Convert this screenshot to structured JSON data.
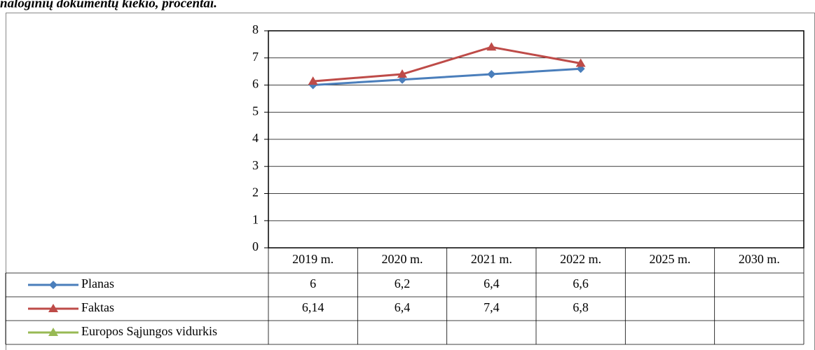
{
  "chart_data": {
    "type": "line",
    "title": "naloginių dokumentų kiekio, procentai.",
    "categories": [
      "2019 m.",
      "2020 m.",
      "2021 m.",
      "2022 m.",
      "2025 m.",
      "2030 m."
    ],
    "ylim": [
      0,
      8
    ],
    "yticks": [
      0,
      1,
      2,
      3,
      4,
      5,
      6,
      7,
      8
    ],
    "grid": true,
    "series": [
      {
        "name": "Planas",
        "color": "#4a7ebb",
        "marker": "diamond",
        "values": [
          6,
          6.2,
          6.4,
          6.6,
          null,
          null
        ],
        "value_labels": [
          "6",
          "6,2",
          "6,4",
          "6,6",
          null,
          null
        ]
      },
      {
        "name": "Faktas",
        "color": "#be4b48",
        "marker": "triangle",
        "values": [
          6.14,
          6.4,
          7.4,
          6.8,
          null,
          null
        ],
        "value_labels": [
          "6,14",
          "6,4",
          "7,4",
          "6,8",
          null,
          null
        ]
      },
      {
        "name": "Europos Sąjungos vidurkis",
        "color": "#98b954",
        "marker": "triangle",
        "values": [
          null,
          null,
          null,
          null,
          null,
          null
        ],
        "value_labels": [
          null,
          null,
          null,
          null,
          null,
          null
        ]
      }
    ]
  }
}
